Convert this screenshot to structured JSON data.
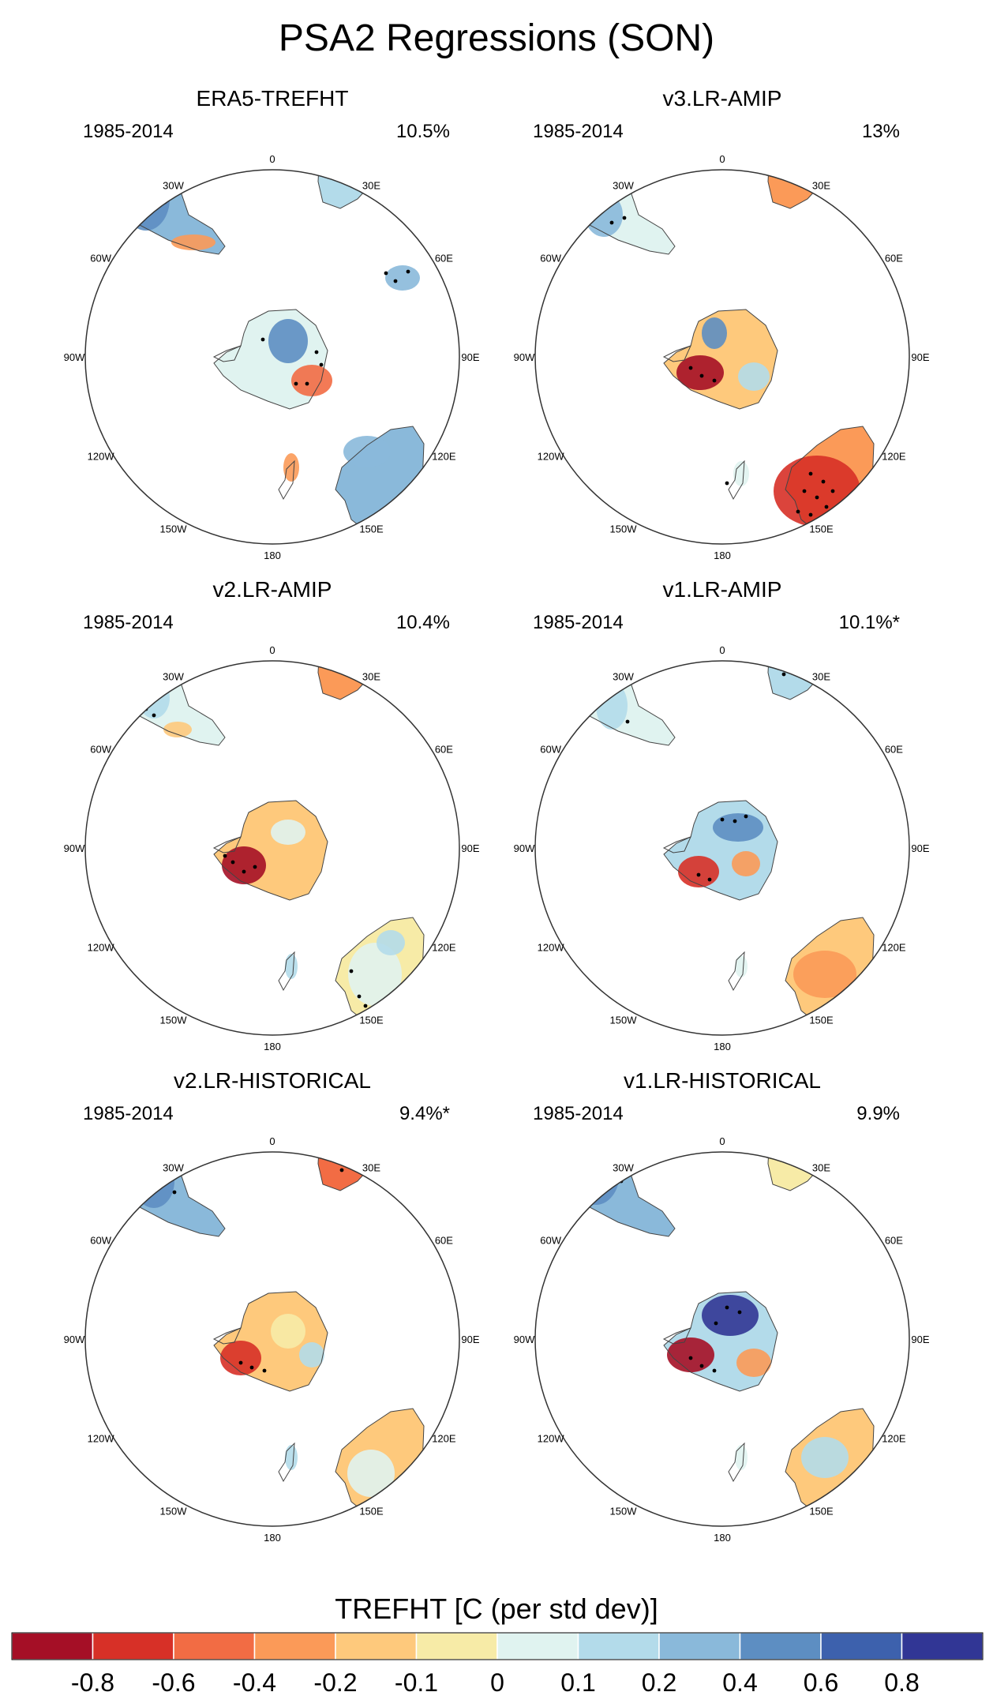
{
  "figure": {
    "title": "PSA2 Regressions (SON)"
  },
  "panels": [
    {
      "title": "ERA5-TREFHT",
      "period": "1985-2014",
      "variance": "10.5%"
    },
    {
      "title": "v3.LR-AMIP",
      "period": "1985-2014",
      "variance": "13%"
    },
    {
      "title": "v2.LR-AMIP",
      "period": "1985-2014",
      "variance": "10.4%"
    },
    {
      "title": "v1.LR-AMIP",
      "period": "1985-2014",
      "variance": "10.1%*"
    },
    {
      "title": "v2.LR-HISTORICAL",
      "period": "1985-2014",
      "variance": "9.4%*"
    },
    {
      "title": "v1.LR-HISTORICAL",
      "period": "1985-2014",
      "variance": "9.9%"
    }
  ],
  "map_labels": [
    "0",
    "30E",
    "60E",
    "90E",
    "120E",
    "150E",
    "180",
    "150W",
    "120W",
    "90W",
    "60W",
    "30W"
  ],
  "colorbar": {
    "title": "TREFHT [C (per std dev)]",
    "colors": [
      "#a50f26",
      "#d73027",
      "#f26c44",
      "#fb9a58",
      "#fec97c",
      "#f7eba7",
      "#e0f3f0",
      "#b3dbea",
      "#8ab9da",
      "#5d8ec2",
      "#3d61ad",
      "#313695"
    ],
    "tick_labels": [
      "-0.8",
      "-0.6",
      "-0.4",
      "-0.2",
      "-0.1",
      "0",
      "0.1",
      "0.2",
      "0.4",
      "0.6",
      "0.8"
    ]
  }
}
